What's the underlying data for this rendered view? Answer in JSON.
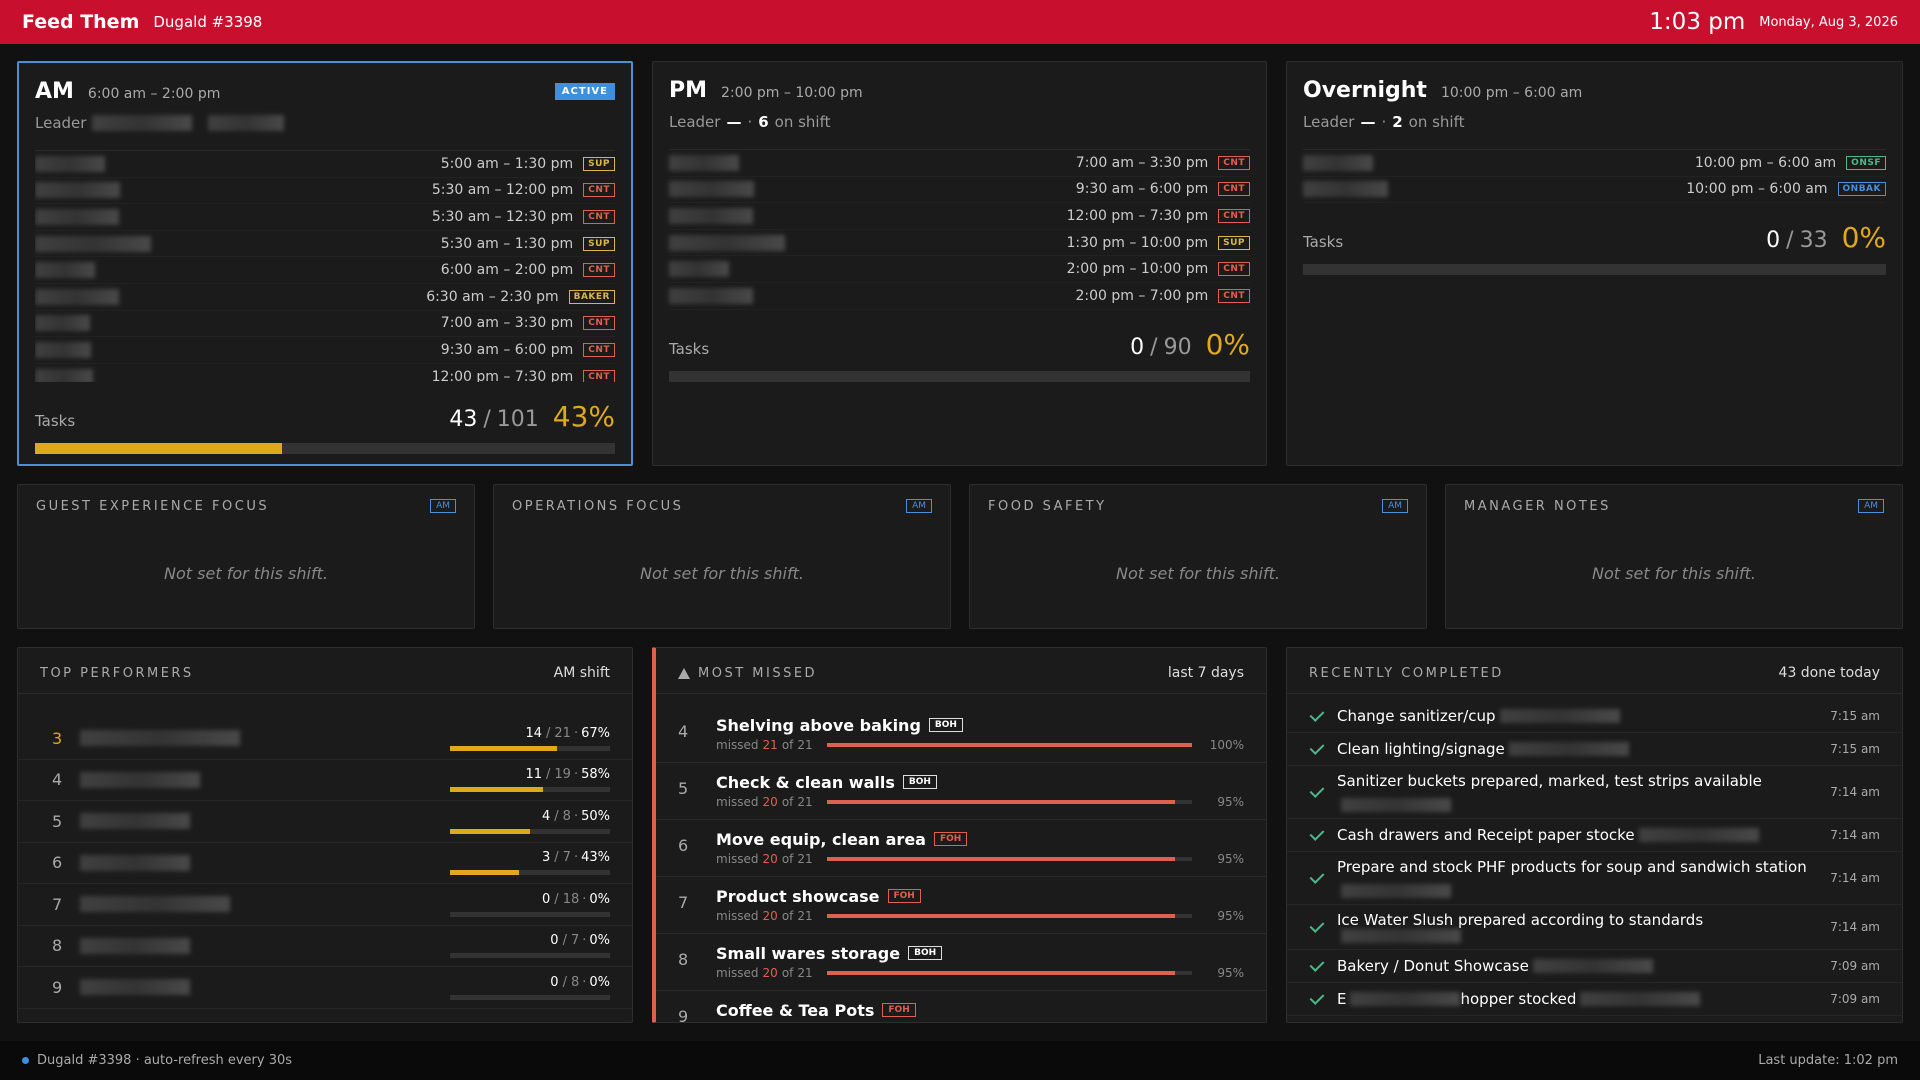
{
  "header": {
    "brand": "Feed Them",
    "store": "Dugald #3398",
    "time": "1:03 pm",
    "date": "Monday, Aug 3, 2026"
  },
  "labels": {
    "leader": "Leader",
    "on_shift": "on shift",
    "tasks": "Tasks",
    "slash": "/",
    "dot": "·",
    "missed": "missed",
    "of": "of"
  },
  "role_colors": {
    "SUP": "#d9b54a",
    "CNT": "#e0604f",
    "BAKER": "#d9b54a",
    "ONSF": "#4fb88a",
    "ONBAK": "#4a90d9"
  },
  "shifts": [
    {
      "name": "AM",
      "hours": "6:00 am – 2:00 pm",
      "badge": "ACTIVE",
      "active": true,
      "staff": [
        {
          "time": "5:00 am – 1:30 pm",
          "role": "SUP"
        },
        {
          "time": "5:30 am – 12:00 pm",
          "role": "CNT"
        },
        {
          "time": "5:30 am – 12:30 pm",
          "role": "CNT"
        },
        {
          "time": "5:30 am – 1:30 pm",
          "role": "SUP"
        },
        {
          "time": "6:00 am – 2:00 pm",
          "role": "CNT"
        },
        {
          "time": "6:30 am – 2:30 pm",
          "role": "BAKER"
        },
        {
          "time": "7:00 am – 3:30 pm",
          "role": "CNT"
        },
        {
          "time": "9:30 am – 6:00 pm",
          "role": "CNT"
        },
        {
          "time": "12:00 pm – 7:30 pm",
          "role": "CNT"
        }
      ],
      "done": 43,
      "total": 101,
      "percent": "43%"
    },
    {
      "name": "PM",
      "hours": "2:00 pm – 10:00 pm",
      "leader": "—",
      "on_shift": 6,
      "staff": [
        {
          "time": "7:00 am – 3:30 pm",
          "role": "CNT"
        },
        {
          "time": "9:30 am – 6:00 pm",
          "role": "CNT"
        },
        {
          "time": "12:00 pm – 7:30 pm",
          "role": "CNT"
        },
        {
          "time": "1:30 pm – 10:00 pm",
          "role": "SUP"
        },
        {
          "time": "2:00 pm – 10:00 pm",
          "role": "CNT"
        },
        {
          "time": "2:00 pm – 7:00 pm",
          "role": "CNT"
        }
      ],
      "done": 0,
      "total": 90,
      "percent": "0%"
    },
    {
      "name": "Overnight",
      "hours": "10:00 pm – 6:00 am",
      "leader": "—",
      "on_shift": 2,
      "staff": [
        {
          "time": "10:00 pm – 6:00 am",
          "role": "ONSF"
        },
        {
          "time": "10:00 pm – 6:00 am",
          "role": "ONBAK"
        }
      ],
      "done": 0,
      "total": 33,
      "percent": "0%"
    }
  ],
  "focus": [
    {
      "title": "GUEST EXPERIENCE FOCUS",
      "badge": "AM",
      "message": "Not set for this shift."
    },
    {
      "title": "OPERATIONS FOCUS",
      "badge": "AM",
      "message": "Not set for this shift."
    },
    {
      "title": "FOOD SAFETY",
      "badge": "AM",
      "message": "Not set for this shift."
    },
    {
      "title": "MANAGER NOTES",
      "badge": "AM",
      "message": "Not set for this shift."
    }
  ],
  "top_performers": {
    "title": "TOP PERFORMERS",
    "scope": "AM shift",
    "rows": [
      {
        "rank": 3,
        "done": 14,
        "total": 21,
        "percent": "67%"
      },
      {
        "rank": 4,
        "done": 11,
        "total": 19,
        "percent": "58%"
      },
      {
        "rank": 5,
        "done": 4,
        "total": 8,
        "percent": "50%"
      },
      {
        "rank": 6,
        "done": 3,
        "total": 7,
        "percent": "43%"
      },
      {
        "rank": 7,
        "done": 0,
        "total": 18,
        "percent": "0%"
      },
      {
        "rank": 8,
        "done": 0,
        "total": 7,
        "percent": "0%"
      },
      {
        "rank": 9,
        "done": 0,
        "total": 8,
        "percent": "0%"
      }
    ]
  },
  "most_missed": {
    "title": "MOST MISSED",
    "scope": "last 7 days",
    "items": [
      {
        "rank": 4,
        "name": "Shelving above baking",
        "tag": "BOH",
        "missed": 21,
        "of": 21,
        "percent": "100%"
      },
      {
        "rank": 5,
        "name": "Check & clean walls",
        "tag": "BOH",
        "missed": 20,
        "of": 21,
        "percent": "95%"
      },
      {
        "rank": 6,
        "name": "Move equip, clean area",
        "tag": "FOH",
        "missed": 20,
        "of": 21,
        "percent": "95%"
      },
      {
        "rank": 7,
        "name": "Product showcase",
        "tag": "FOH",
        "missed": 20,
        "of": 21,
        "percent": "95%"
      },
      {
        "rank": 8,
        "name": "Small wares storage",
        "tag": "BOH",
        "missed": 20,
        "of": 21,
        "percent": "95%"
      },
      {
        "rank": 9,
        "name": "Coffee & Tea Pots",
        "tag": "FOH"
      }
    ]
  },
  "recently_completed": {
    "title": "RECENTLY COMPLETED",
    "summary": "43 done today",
    "items": [
      {
        "text": "Change sanitizer/cup",
        "time": "7:15 am"
      },
      {
        "text": "Clean lighting/signage",
        "time": "7:15 am"
      },
      {
        "text": "Sanitizer buckets prepared, marked, test strips available",
        "time": "7:14 am",
        "wrap": true
      },
      {
        "text": "Cash drawers and Receipt paper stocke",
        "time": "7:14 am"
      },
      {
        "text": "Prepare and stock PHF products for soup and sandwich station",
        "time": "7:14 am",
        "wrap": true
      },
      {
        "text": "Ice Water Slush prepared according to standards",
        "time": "7:14 am"
      },
      {
        "text": "Bakery / Donut Showcase",
        "time": "7:09 am"
      },
      {
        "text": "E",
        "text2": "hopper stocked",
        "time": "7:09 am"
      }
    ]
  },
  "footer": {
    "status": "Dugald #3398 · auto-refresh every 30s",
    "last_update": "Last update: 1:02 pm"
  }
}
